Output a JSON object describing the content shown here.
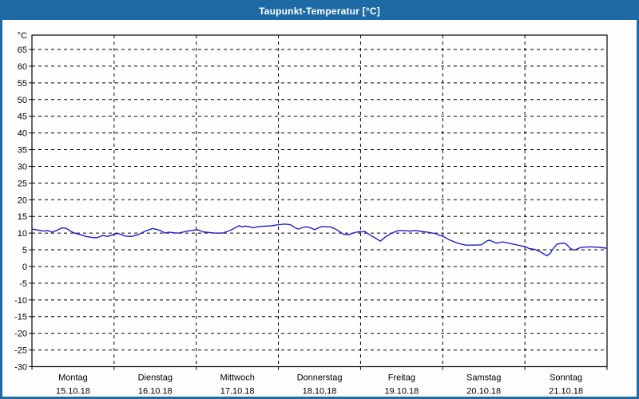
{
  "window": {
    "title": "Taupunkt-Temperatur [°C]"
  },
  "colors": {
    "titlebar_blue": "#1e6aa5",
    "window_border": "#1e6aa5",
    "series_line": "#1f1fc8",
    "grid_line": "#000000",
    "axis_line": "#000000",
    "plot_background": "#fdfefd",
    "title_text": "#ffffff",
    "label_text": "#000000"
  },
  "chart_data": {
    "type": "line",
    "title": "Taupunkt-Temperatur [°C]",
    "ylabel": "°C",
    "ylim": [
      -30,
      69.3
    ],
    "ytick_step": 5,
    "yticks": [
      65,
      60,
      55,
      50,
      45,
      40,
      35,
      30,
      25,
      20,
      15,
      10,
      5,
      0,
      -5,
      -10,
      -15,
      -20,
      -25,
      -30
    ],
    "grid": "dashed",
    "legend_position": "none",
    "x_unit": "days",
    "xlim_days": [
      0,
      7
    ],
    "day_labels": [
      {
        "name": "Montag",
        "date": "15.10.18"
      },
      {
        "name": "Dienstag",
        "date": "16.10.18"
      },
      {
        "name": "Mittwoch",
        "date": "17.10.18"
      },
      {
        "name": "Donnerstag",
        "date": "18.10.18"
      },
      {
        "name": "Freitag",
        "date": "19.10.18"
      },
      {
        "name": "Samstag",
        "date": "20.10.18"
      },
      {
        "name": "Sonntag",
        "date": "21.10.18"
      }
    ],
    "series": [
      {
        "name": "Taupunkt-Temperatur",
        "color": "#1f1fc8",
        "points_day_temp": [
          [
            0.0,
            11.2
          ],
          [
            0.05,
            11.0
          ],
          [
            0.08,
            10.9
          ],
          [
            0.15,
            10.6
          ],
          [
            0.19,
            10.8
          ],
          [
            0.24,
            10.3
          ],
          [
            0.29,
            10.7
          ],
          [
            0.34,
            11.3
          ],
          [
            0.37,
            11.6
          ],
          [
            0.42,
            11.4
          ],
          [
            0.46,
            10.8
          ],
          [
            0.5,
            10.2
          ],
          [
            0.58,
            9.6
          ],
          [
            0.66,
            9.0
          ],
          [
            0.73,
            8.7
          ],
          [
            0.79,
            8.6
          ],
          [
            0.84,
            9.1
          ],
          [
            0.87,
            9.3
          ],
          [
            0.92,
            9.0
          ],
          [
            0.97,
            9.4
          ],
          [
            1.02,
            9.8
          ],
          [
            1.05,
            9.9
          ],
          [
            1.1,
            9.4
          ],
          [
            1.14,
            9.1
          ],
          [
            1.21,
            9.0
          ],
          [
            1.29,
            9.5
          ],
          [
            1.38,
            10.6
          ],
          [
            1.47,
            11.4
          ],
          [
            1.53,
            11.0
          ],
          [
            1.57,
            10.7
          ],
          [
            1.62,
            10.0
          ],
          [
            1.67,
            10.3
          ],
          [
            1.72,
            10.1
          ],
          [
            1.79,
            10.0
          ],
          [
            1.89,
            10.6
          ],
          [
            1.97,
            10.9
          ],
          [
            2.02,
            11.0
          ],
          [
            2.08,
            10.4
          ],
          [
            2.15,
            10.2
          ],
          [
            2.23,
            10.0
          ],
          [
            2.32,
            10.0
          ],
          [
            2.42,
            10.9
          ],
          [
            2.52,
            12.2
          ],
          [
            2.56,
            11.9
          ],
          [
            2.6,
            12.1
          ],
          [
            2.65,
            11.9
          ],
          [
            2.69,
            11.6
          ],
          [
            2.76,
            12.0
          ],
          [
            2.86,
            12.1
          ],
          [
            2.92,
            12.2
          ],
          [
            2.97,
            12.4
          ],
          [
            3.04,
            12.6
          ],
          [
            3.08,
            12.7
          ],
          [
            3.15,
            12.5
          ],
          [
            3.19,
            11.8
          ],
          [
            3.24,
            11.2
          ],
          [
            3.3,
            11.7
          ],
          [
            3.34,
            11.9
          ],
          [
            3.39,
            11.6
          ],
          [
            3.44,
            11.0
          ],
          [
            3.49,
            11.6
          ],
          [
            3.53,
            12.0
          ],
          [
            3.58,
            11.9
          ],
          [
            3.63,
            11.9
          ],
          [
            3.68,
            11.4
          ],
          [
            3.73,
            10.7
          ],
          [
            3.79,
            9.7
          ],
          [
            3.85,
            9.5
          ],
          [
            3.92,
            10.1
          ],
          [
            3.97,
            10.4
          ],
          [
            4.02,
            10.4
          ],
          [
            4.05,
            10.5
          ],
          [
            4.11,
            9.5
          ],
          [
            4.16,
            8.8
          ],
          [
            4.24,
            7.6
          ],
          [
            4.31,
            9.0
          ],
          [
            4.38,
            10.0
          ],
          [
            4.45,
            10.7
          ],
          [
            4.53,
            10.8
          ],
          [
            4.6,
            10.6
          ],
          [
            4.67,
            10.8
          ],
          [
            4.74,
            10.5
          ],
          [
            4.84,
            10.2
          ],
          [
            4.92,
            9.8
          ],
          [
            4.97,
            9.3
          ],
          [
            5.0,
            9.1
          ],
          [
            5.08,
            8.0
          ],
          [
            5.18,
            7.0
          ],
          [
            5.28,
            6.4
          ],
          [
            5.37,
            6.4
          ],
          [
            5.47,
            6.5
          ],
          [
            5.54,
            7.7
          ],
          [
            5.57,
            7.9
          ],
          [
            5.62,
            7.3
          ],
          [
            5.66,
            7.0
          ],
          [
            5.73,
            7.4
          ],
          [
            5.8,
            7.0
          ],
          [
            5.86,
            6.7
          ],
          [
            5.95,
            6.2
          ],
          [
            6.0,
            6.0
          ],
          [
            6.05,
            5.4
          ],
          [
            6.12,
            5.1
          ],
          [
            6.19,
            4.4
          ],
          [
            6.24,
            3.6
          ],
          [
            6.27,
            3.2
          ],
          [
            6.31,
            4.0
          ],
          [
            6.34,
            5.2
          ],
          [
            6.39,
            6.7
          ],
          [
            6.44,
            6.9
          ],
          [
            6.47,
            7.0
          ],
          [
            6.5,
            6.8
          ],
          [
            6.56,
            5.3
          ],
          [
            6.6,
            4.9
          ],
          [
            6.68,
            5.7
          ],
          [
            6.78,
            5.9
          ],
          [
            6.87,
            5.8
          ],
          [
            6.95,
            5.6
          ],
          [
            6.99,
            5.5
          ]
        ]
      }
    ]
  }
}
